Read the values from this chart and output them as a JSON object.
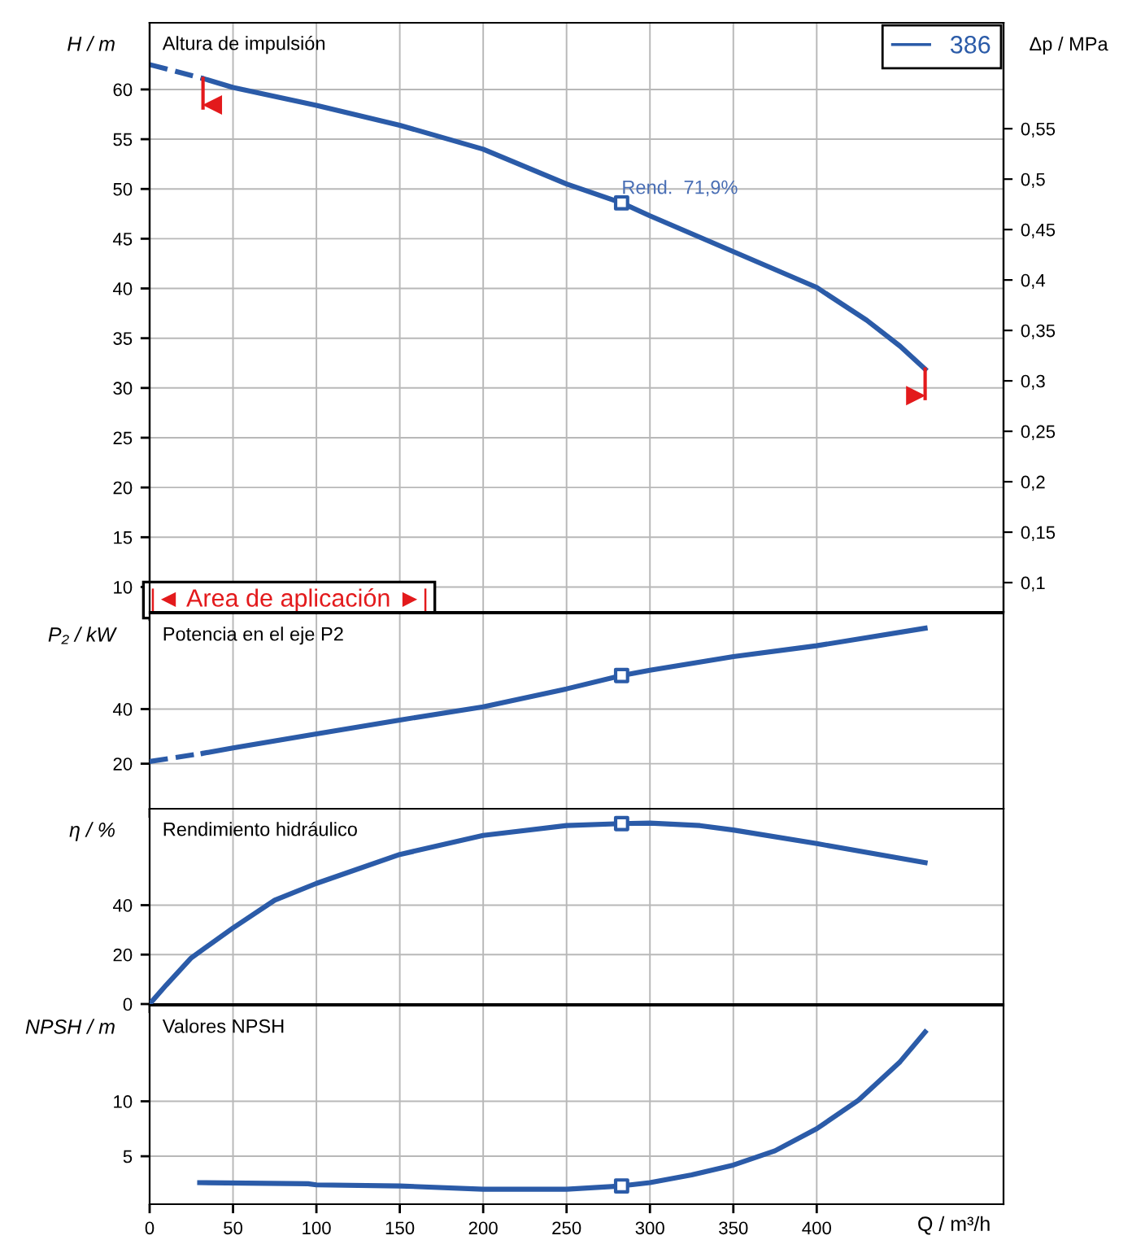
{
  "chart_data": [
    {
      "type": "line",
      "title": "Altura de impulsión",
      "ylabel": "H / m",
      "y2label": "Δp / MPa",
      "xlim": [
        0,
        512
      ],
      "xticks": [
        0,
        50,
        100,
        150,
        200,
        250,
        300,
        350,
        400
      ],
      "ylim": [
        7.5,
        66.7
      ],
      "yticks": [
        10,
        15,
        20,
        25,
        30,
        35,
        40,
        45,
        50,
        55,
        60
      ],
      "y2lim": [
        0.071,
        0.655
      ],
      "y2ticks": [
        {
          "value": 0.1,
          "label": "0,1"
        },
        {
          "value": 0.15,
          "label": "0,15"
        },
        {
          "value": 0.2,
          "label": "0,2"
        },
        {
          "value": 0.25,
          "label": "0,25"
        },
        {
          "value": 0.3,
          "label": "0,3"
        },
        {
          "value": 0.35,
          "label": "0,35"
        },
        {
          "value": 0.4,
          "label": "0,4"
        },
        {
          "value": 0.45,
          "label": "0,45"
        },
        {
          "value": 0.5,
          "label": "0,5"
        },
        {
          "value": 0.55,
          "label": "0,55"
        }
      ],
      "tick_labels": "y",
      "grid": true,
      "legend": "top right",
      "series": [
        {
          "color": "#2b5ba8",
          "line_style": "dashed",
          "x": [
            0,
            32
          ],
          "values": [
            62.5,
            61.1
          ]
        },
        {
          "name": "386",
          "color": "#2b5ba8",
          "line_style": "solid",
          "x": [
            32,
            50,
            100,
            150,
            200,
            250,
            283,
            300,
            350,
            400,
            430,
            450,
            465
          ],
          "values": [
            61.1,
            60.2,
            58.4,
            56.4,
            54.0,
            50.5,
            48.6,
            47.3,
            43.7,
            40.1,
            36.8,
            34.2,
            31.9
          ]
        },
        {
          "type": "scatter",
          "marker": "square",
          "color": "#2b5ba8",
          "x": [
            283
          ],
          "values": [
            48.6
          ]
        }
      ],
      "annotations": [
        {
          "text": "Rend.  71,9%",
          "x": 283,
          "y": 48.6
        },
        "|◄ Area de aplicación ►|"
      ]
    },
    {
      "type": "line",
      "title": "Potencia en el eje P2",
      "ylabel": "P₂ / kW",
      "xlim": [
        0,
        512
      ],
      "xticks": [
        0,
        50,
        100,
        150,
        200,
        250,
        300,
        350,
        400
      ],
      "ylim": [
        3.5,
        75
      ],
      "yticks": [
        20,
        40
      ],
      "tick_labels": "y",
      "grid": true,
      "series": [
        {
          "color": "#2b5ba8",
          "line_style": "dashed",
          "x": [
            0,
            32
          ],
          "values": [
            20.8,
            23.8
          ]
        },
        {
          "color": "#2b5ba8",
          "line_style": "solid",
          "x": [
            32,
            50,
            100,
            150,
            200,
            250,
            283,
            300,
            350,
            400,
            465
          ],
          "values": [
            23.8,
            25.8,
            30.9,
            36.0,
            40.8,
            47.4,
            52.3,
            54.2,
            59.2,
            63.2,
            69.6
          ]
        },
        {
          "type": "scatter",
          "marker": "square",
          "color": "#2b5ba8",
          "x": [
            283
          ],
          "values": [
            52.3
          ]
        }
      ]
    },
    {
      "type": "line",
      "title": "Rendimiento hidráulico",
      "ylabel": "η / %",
      "xlim": [
        0,
        512
      ],
      "xticks": [
        0,
        50,
        100,
        150,
        200,
        250,
        300,
        350,
        400
      ],
      "ylim": [
        0,
        79
      ],
      "yticks": [
        0,
        20,
        40
      ],
      "tick_labels": "y",
      "grid": true,
      "series": [
        {
          "color": "#2b5ba8",
          "line_style": "solid",
          "x": [
            0,
            10,
            25,
            50,
            75,
            100,
            150,
            200,
            250,
            283,
            300,
            330,
            350,
            400,
            465
          ],
          "values": [
            0,
            7.7,
            18.7,
            30.8,
            42.0,
            48.8,
            60.5,
            68.2,
            72.2,
            73.0,
            73.2,
            72.2,
            70.4,
            64.9,
            57.2
          ]
        },
        {
          "type": "scatter",
          "marker": "square",
          "color": "#2b5ba8",
          "x": [
            283
          ],
          "values": [
            73.0
          ]
        }
      ]
    },
    {
      "type": "line",
      "title": "Valores NPSH",
      "ylabel": "NPSH / m",
      "xlabel": "Q / m³/h",
      "xlim": [
        0,
        512
      ],
      "xticks": [
        0,
        50,
        100,
        150,
        200,
        250,
        300,
        350,
        400
      ],
      "ylim": [
        0.64,
        18.7
      ],
      "yticks": [
        5,
        10
      ],
      "grid": true,
      "series": [
        {
          "color": "#2b5ba8",
          "line_style": "solid",
          "x": [
            30,
            95,
            100,
            150,
            200,
            250,
            283,
            300,
            325,
            350,
            375,
            400,
            425,
            450,
            465
          ],
          "values": [
            2.6,
            2.5,
            2.4,
            2.3,
            2.0,
            2.0,
            2.3,
            2.6,
            3.3,
            4.2,
            5.5,
            7.5,
            10.1,
            13.6,
            16.3
          ]
        },
        {
          "type": "scatter",
          "marker": "square",
          "color": "#2b5ba8",
          "x": [
            283
          ],
          "values": [
            2.3
          ]
        }
      ]
    }
  ]
}
